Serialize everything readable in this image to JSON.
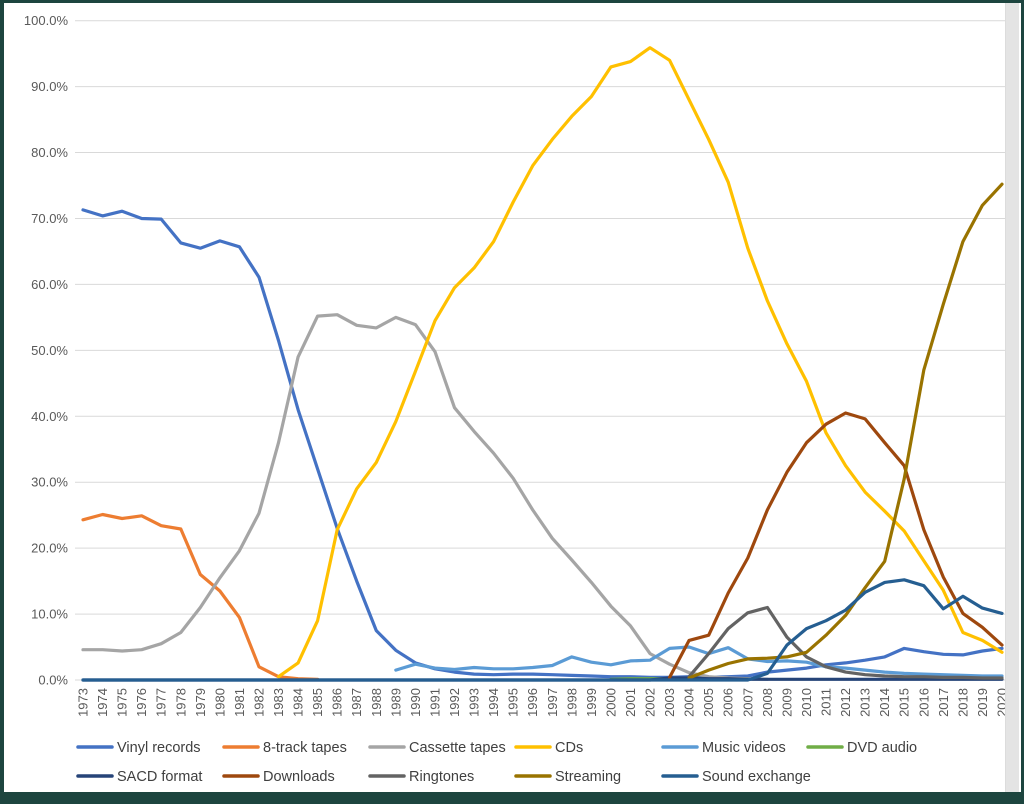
{
  "window": {
    "border_color": "#1d453f"
  },
  "chart_data": {
    "type": "line",
    "title": "",
    "xlabel": "",
    "ylabel": "",
    "ylim": [
      0,
      100
    ],
    "grid": true,
    "legend_position": "bottom",
    "y_ticks": [
      "0.0%",
      "10.0%",
      "20.0%",
      "30.0%",
      "40.0%",
      "50.0%",
      "60.0%",
      "70.0%",
      "80.0%",
      "90.0%",
      "100.0%"
    ],
    "x": [
      1973,
      1974,
      1975,
      1976,
      1977,
      1978,
      1979,
      1980,
      1981,
      1982,
      1983,
      1984,
      1985,
      1986,
      1987,
      1988,
      1989,
      1990,
      1991,
      1992,
      1993,
      1994,
      1995,
      1996,
      1997,
      1998,
      1999,
      2000,
      2001,
      2002,
      2003,
      2004,
      2005,
      2006,
      2007,
      2008,
      2009,
      2010,
      2011,
      2012,
      2013,
      2014,
      2015,
      2016,
      2017,
      2018,
      2019,
      2020
    ],
    "series": [
      {
        "name": "Vinyl records",
        "color": "#4472C4",
        "values": [
          71.3,
          70.4,
          71.1,
          70.0,
          69.9,
          66.3,
          65.5,
          66.6,
          65.7,
          61.1,
          51.5,
          41.0,
          32.0,
          23.0,
          15.0,
          7.5,
          4.5,
          2.6,
          1.7,
          1.2,
          0.9,
          0.8,
          0.9,
          0.9,
          0.8,
          0.7,
          0.6,
          0.5,
          0.5,
          0.4,
          0.4,
          0.5,
          0.4,
          0.5,
          0.6,
          1.2,
          1.5,
          1.8,
          2.3,
          2.6,
          3.0,
          3.5,
          4.8,
          4.3,
          3.9,
          3.8,
          4.4,
          4.8
        ]
      },
      {
        "name": "8-track tapes",
        "color": "#ED7D31",
        "values": [
          24.3,
          25.1,
          24.5,
          24.9,
          23.4,
          22.9,
          16.0,
          13.5,
          9.5,
          2.0,
          0.5,
          0.2,
          0.1,
          null,
          null,
          null,
          null,
          null,
          null,
          null,
          null,
          null,
          null,
          null,
          null,
          null,
          null,
          null,
          null,
          null,
          null,
          null,
          null,
          null,
          null,
          null,
          null,
          null,
          null,
          null,
          null,
          null,
          null,
          null,
          null,
          null,
          null,
          null
        ]
      },
      {
        "name": "Cassette tapes",
        "color": "#A5A5A5",
        "values": [
          4.6,
          4.6,
          4.4,
          4.6,
          5.5,
          7.2,
          11.0,
          15.5,
          19.6,
          25.3,
          36.0,
          49.0,
          55.2,
          55.4,
          53.8,
          53.4,
          55.0,
          53.9,
          49.8,
          41.3,
          37.7,
          34.4,
          30.6,
          25.8,
          21.5,
          18.2,
          14.8,
          11.2,
          8.2,
          4.0,
          2.4,
          1.1,
          0.5,
          0.3,
          0.2,
          0.1,
          null,
          null,
          null,
          null,
          null,
          null,
          null,
          null,
          null,
          null,
          null,
          null
        ]
      },
      {
        "name": "CDs",
        "color": "#FFC000",
        "values": [
          null,
          null,
          null,
          null,
          null,
          null,
          null,
          null,
          null,
          null,
          0.5,
          2.6,
          9.0,
          22.8,
          29.0,
          33.0,
          39.2,
          46.8,
          54.5,
          59.5,
          62.5,
          66.5,
          72.5,
          78.0,
          82.0,
          85.5,
          88.5,
          93.0,
          93.8,
          95.9,
          94.0,
          88.0,
          82.0,
          75.5,
          65.5,
          57.5,
          51.0,
          45.3,
          37.5,
          32.5,
          28.5,
          25.6,
          22.6,
          18.1,
          13.6,
          7.2,
          6.0,
          4.2
        ]
      },
      {
        "name": "Music videos",
        "color": "#5B9BD5",
        "values": [
          null,
          null,
          null,
          null,
          null,
          null,
          null,
          null,
          null,
          null,
          null,
          null,
          null,
          null,
          null,
          null,
          1.5,
          2.4,
          1.8,
          1.6,
          1.9,
          1.7,
          1.7,
          1.9,
          2.2,
          3.5,
          2.7,
          2.3,
          2.9,
          3.0,
          4.8,
          5.0,
          4.0,
          4.9,
          3.2,
          2.8,
          2.9,
          2.7,
          2.0,
          1.8,
          1.5,
          1.2,
          1.0,
          0.9,
          0.8,
          0.7,
          0.6,
          0.6
        ]
      },
      {
        "name": "DVD audio",
        "color": "#70AD47",
        "values": [
          null,
          null,
          null,
          null,
          null,
          null,
          null,
          null,
          null,
          null,
          null,
          null,
          null,
          null,
          null,
          null,
          null,
          null,
          null,
          null,
          null,
          null,
          null,
          null,
          null,
          null,
          null,
          0.1,
          0.2,
          0.2,
          0.2,
          0.2,
          0.1,
          0.1,
          0.1,
          null,
          null,
          null,
          null,
          null,
          null,
          null,
          null,
          null,
          null,
          null,
          null,
          null
        ]
      },
      {
        "name": "SACD format",
        "color": "#264478",
        "values": [
          0,
          0,
          0,
          0,
          0,
          0,
          0,
          0,
          0,
          0,
          0,
          0,
          0,
          0,
          0,
          0,
          0,
          0,
          0,
          0,
          0,
          0,
          0,
          0,
          0,
          0,
          0,
          0,
          0,
          0,
          0.3,
          0.3,
          0.2,
          0.2,
          0.1,
          0.1,
          0.1,
          0.1,
          0.1,
          0.1,
          0.1,
          0.1,
          0.1,
          0.1,
          0.1,
          0.1,
          0.1,
          0.1
        ]
      },
      {
        "name": "Downloads",
        "color": "#9E480E",
        "values": [
          null,
          null,
          null,
          null,
          null,
          null,
          null,
          null,
          null,
          null,
          null,
          null,
          null,
          null,
          null,
          null,
          null,
          null,
          null,
          null,
          null,
          null,
          null,
          null,
          null,
          null,
          null,
          null,
          null,
          null,
          0.4,
          6.0,
          6.8,
          13.2,
          18.5,
          25.8,
          31.5,
          36.0,
          38.8,
          40.5,
          39.6,
          36.0,
          32.5,
          22.8,
          15.6,
          10.1,
          8.0,
          5.3
        ]
      },
      {
        "name": "Ringtones",
        "color": "#636363",
        "values": [
          null,
          null,
          null,
          null,
          null,
          null,
          null,
          null,
          null,
          null,
          null,
          null,
          null,
          null,
          null,
          null,
          null,
          null,
          null,
          null,
          null,
          null,
          null,
          null,
          null,
          null,
          null,
          null,
          null,
          null,
          null,
          0.5,
          4.0,
          7.8,
          10.2,
          11.0,
          6.5,
          3.5,
          2.0,
          1.2,
          0.8,
          0.6,
          0.5,
          0.5,
          0.4,
          0.4,
          0.3,
          0.3
        ]
      },
      {
        "name": "Streaming",
        "color": "#997300",
        "values": [
          null,
          null,
          null,
          null,
          null,
          null,
          null,
          null,
          null,
          null,
          null,
          null,
          null,
          null,
          null,
          null,
          null,
          null,
          null,
          null,
          null,
          null,
          null,
          null,
          null,
          null,
          null,
          null,
          null,
          null,
          null,
          0.3,
          1.5,
          2.5,
          3.2,
          3.3,
          3.5,
          4.2,
          6.8,
          9.8,
          14.0,
          18.0,
          30.5,
          47.0,
          57.0,
          66.5,
          72.0,
          75.2
        ]
      },
      {
        "name": "Sound exchange",
        "color": "#255E91",
        "values": [
          0,
          0,
          0,
          0,
          0,
          0,
          0,
          0,
          0,
          0,
          0,
          0,
          0,
          0,
          0,
          0,
          0,
          0,
          0,
          0,
          0,
          0,
          0,
          0,
          0,
          0,
          0,
          0,
          0,
          0,
          0,
          0,
          0,
          0,
          0,
          1.0,
          5.3,
          7.8,
          9.0,
          10.6,
          13.3,
          14.8,
          15.2,
          14.3,
          10.8,
          12.7,
          10.9,
          10.1
        ]
      }
    ]
  }
}
